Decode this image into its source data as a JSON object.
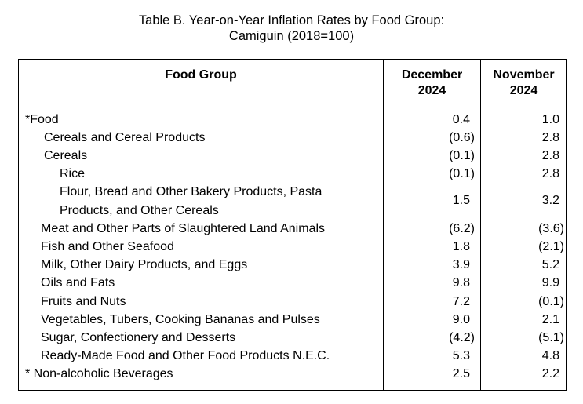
{
  "title": {
    "line1": "Table B. Year-on-Year Inflation Rates by Food Group:",
    "line2": "Camiguin (2018=100)"
  },
  "columns": {
    "food_group": "Food Group",
    "dec_line1": "December",
    "dec_line2": "2024",
    "nov_line1": "November",
    "nov_line2": "2024"
  },
  "rows": [
    {
      "label": "*Food",
      "dec": "0.4",
      "nov": "1.0"
    },
    {
      "label": "Cereals and Cereal Products",
      "dec": "(0.6)",
      "nov": "2.8"
    },
    {
      "label": "Cereals",
      "dec": "(0.1)",
      "nov": "2.8"
    },
    {
      "label": "Rice",
      "dec": "(0.1)",
      "nov": "2.8"
    },
    {
      "label_line1": "Flour, Bread and Other Bakery Products, Pasta",
      "label_line2": "Products, and Other Cereals",
      "dec": "1.5",
      "nov": "3.2"
    },
    {
      "label": "Meat and Other Parts of Slaughtered Land Animals",
      "dec": "(6.2)",
      "nov": "(3.6)"
    },
    {
      "label": "Fish and Other Seafood",
      "dec": "1.8",
      "nov": "(2.1)"
    },
    {
      "label": "Milk, Other Dairy Products, and Eggs",
      "dec": "3.9",
      "nov": "5.2"
    },
    {
      "label": "Oils and Fats",
      "dec": "9.8",
      "nov": "9.9"
    },
    {
      "label": "Fruits and Nuts",
      "dec": "7.2",
      "nov": "(0.1)"
    },
    {
      "label": "Vegetables, Tubers, Cooking Bananas and Pulses",
      "dec": "9.0",
      "nov": "2.1"
    },
    {
      "label": "Sugar, Confectionery and Desserts",
      "dec": "(4.2)",
      "nov": "(5.1)"
    },
    {
      "label": "Ready-Made Food and Other Food Products N.E.C.",
      "dec": "5.3",
      "nov": "4.8"
    },
    {
      "label": "* Non-alcoholic Beverages",
      "dec": "2.5",
      "nov": "2.2"
    }
  ]
}
